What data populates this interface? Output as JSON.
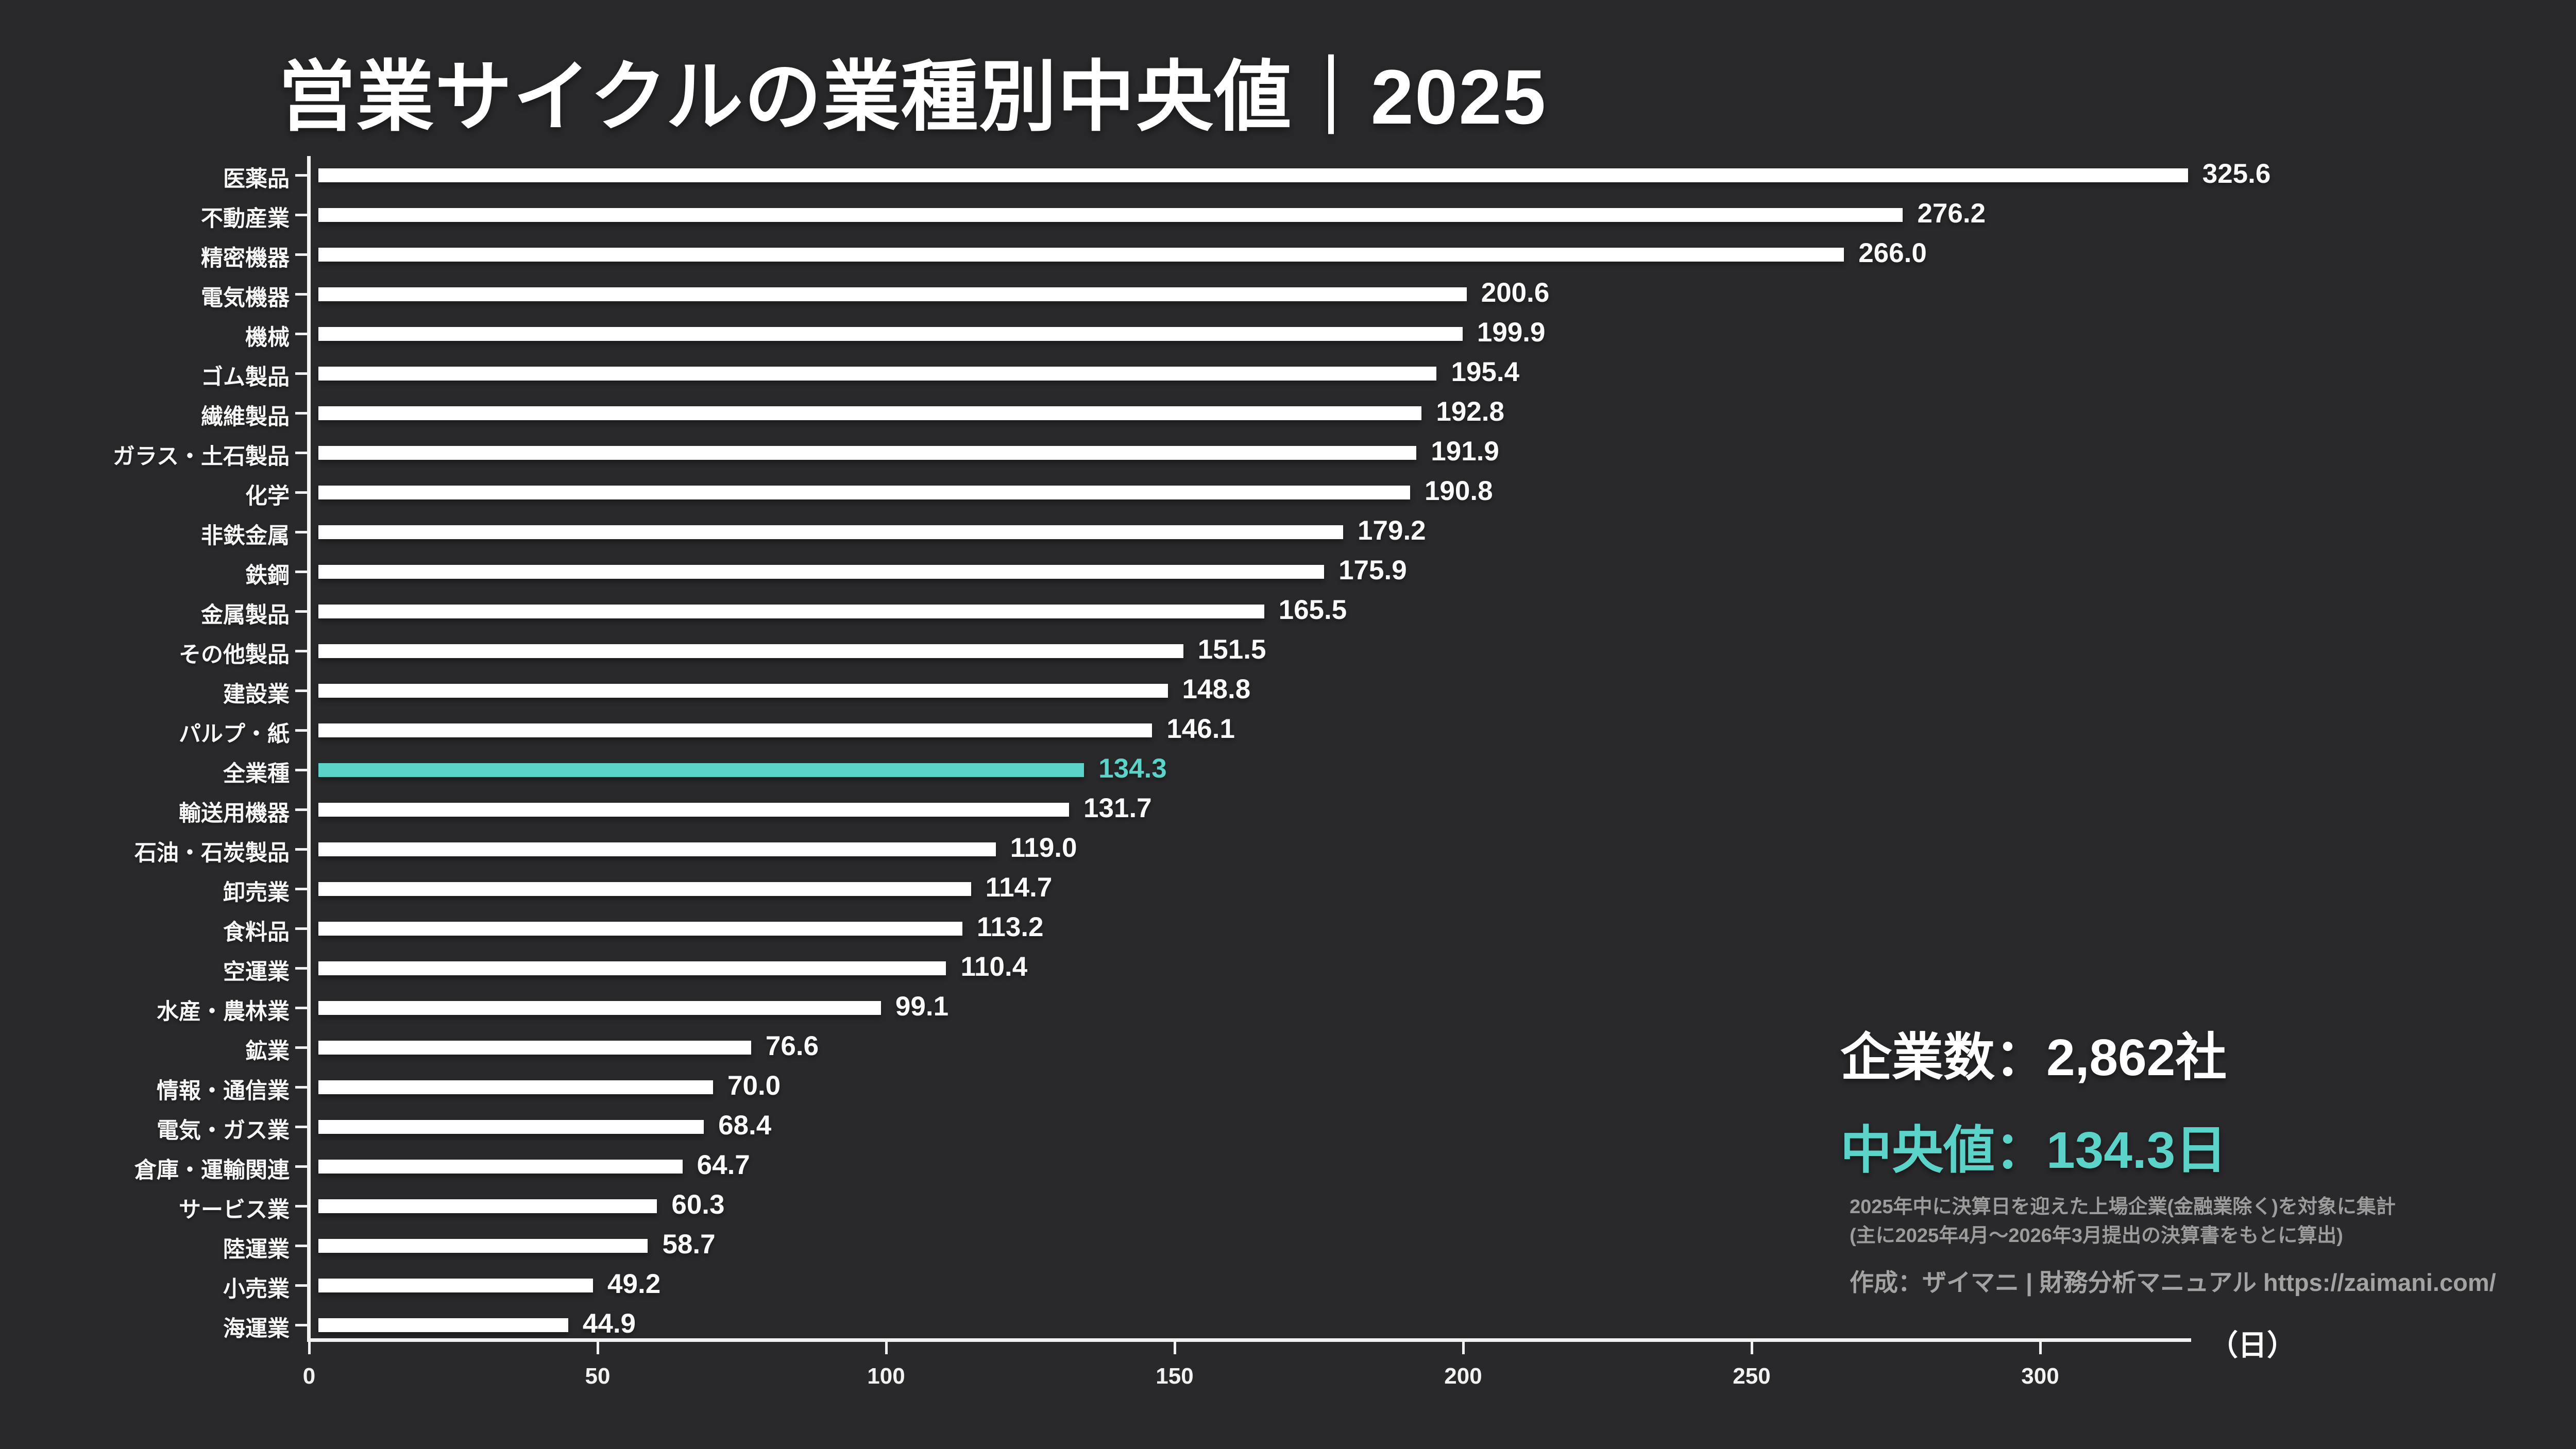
{
  "title": "営業サイクルの業種別中央値｜2025",
  "unit_label": "（日）",
  "stats": {
    "companies": "企業数：2,862社",
    "median": "中央値：134.3日"
  },
  "footnotes": {
    "0": "2025年中に決算日を迎えた上場企業(金融業除く)を対象に集計",
    "1": "(主に2025年4月～2026年3月提出の決算書をもとに算出)"
  },
  "credit": "作成：ザイマニ | 財務分析マニュアル https://zaimani.com/",
  "colors": {
    "background": "#29282b",
    "bar": "#ffffff",
    "highlight": "#5cd3c9",
    "text": "#ffffff",
    "muted": "#9c9c9c"
  },
  "chart_data": {
    "type": "bar",
    "orientation": "horizontal",
    "title": "営業サイクルの業種別中央値｜2025",
    "xlabel": "（日）",
    "ylabel": "",
    "x_ticks": [
      0,
      50,
      100,
      150,
      200,
      250,
      300
    ],
    "xlim": [
      0,
      326
    ],
    "grid": false,
    "legend": "none",
    "highlight_category": "全業種",
    "categories": [
      "医薬品",
      "不動産業",
      "精密機器",
      "電気機器",
      "機械",
      "ゴム製品",
      "繊維製品",
      "ガラス・土石製品",
      "化学",
      "非鉄金属",
      "鉄鋼",
      "金属製品",
      "その他製品",
      "建設業",
      "パルプ・紙",
      "全業種",
      "輸送用機器",
      "石油・石炭製品",
      "卸売業",
      "食料品",
      "空運業",
      "水産・農林業",
      "鉱業",
      "情報・通信業",
      "電気・ガス業",
      "倉庫・運輸関連",
      "サービス業",
      "陸運業",
      "小売業",
      "海運業"
    ],
    "values": [
      "325.6",
      "276.2",
      "266.0",
      "200.6",
      "199.9",
      "195.4",
      "192.8",
      "191.9",
      "190.8",
      "179.2",
      "175.9",
      "165.5",
      "151.5",
      "148.8",
      "146.1",
      "134.3",
      "131.7",
      "119.0",
      "114.7",
      "113.2",
      "110.4",
      "99.1",
      "76.6",
      "70.0",
      "68.4",
      "64.7",
      "60.3",
      "58.7",
      "49.2",
      "44.9"
    ]
  }
}
